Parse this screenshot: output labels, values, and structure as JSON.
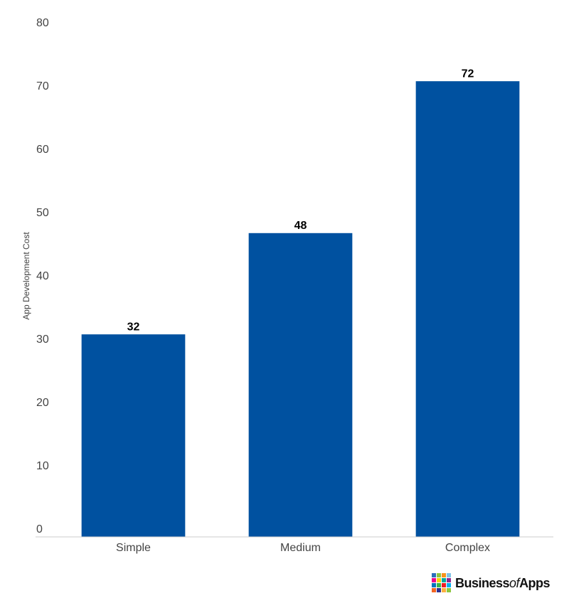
{
  "chart_data": {
    "type": "bar",
    "y_label": "App Development Cost",
    "categories": [
      "Simple",
      "Medium",
      "Complex"
    ],
    "values": [
      32,
      48,
      72
    ],
    "color": "#0051a0",
    "ylim": [
      0,
      80
    ],
    "yticks": [
      0,
      10,
      20,
      30,
      40,
      50,
      60,
      70,
      80
    ],
    "grid": false
  },
  "logo": {
    "part1": "Business",
    "part2": "of",
    "part3": "Apps"
  }
}
